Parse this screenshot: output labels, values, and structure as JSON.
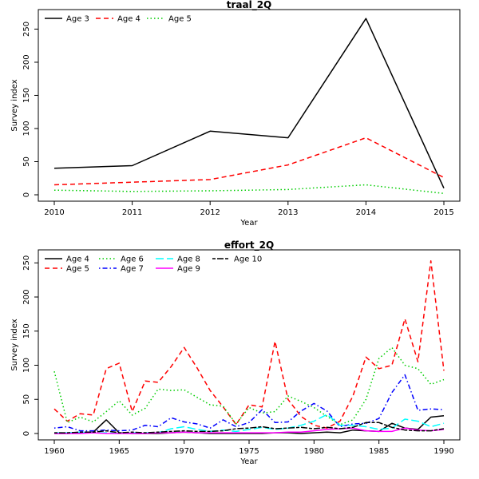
{
  "chart_data": [
    {
      "type": "line",
      "title": "traal_2Q",
      "xlabel": "Year",
      "ylabel": "Survey index",
      "x": [
        2010,
        2011,
        2012,
        2013,
        2014,
        2015
      ],
      "xlim": [
        2010,
        2015
      ],
      "ylim": [
        0,
        265
      ],
      "xticks": [
        2010,
        2011,
        2012,
        2013,
        2014,
        2015
      ],
      "yticks": [
        0,
        50,
        100,
        150,
        200,
        250
      ],
      "legend": "top-left",
      "series": [
        {
          "name": "Age 3",
          "color": "#000000",
          "dash": "solid",
          "values": [
            40,
            44,
            96,
            86,
            266,
            10
          ]
        },
        {
          "name": "Age 4",
          "color": "#ff0000",
          "dash": "dashed",
          "values": [
            15,
            19,
            23,
            45,
            86,
            26
          ]
        },
        {
          "name": "Age 5",
          "color": "#00cd00",
          "dash": "dotted",
          "values": [
            7,
            5,
            6,
            8,
            15,
            2
          ]
        }
      ]
    },
    {
      "type": "line",
      "title": "effort_2Q",
      "xlabel": "Year",
      "ylabel": "Survey index",
      "x": [
        1960,
        1961,
        1962,
        1963,
        1964,
        1965,
        1966,
        1967,
        1968,
        1969,
        1970,
        1971,
        1972,
        1973,
        1974,
        1975,
        1976,
        1977,
        1978,
        1979,
        1980,
        1981,
        1982,
        1983,
        1984,
        1985,
        1986,
        1987,
        1988,
        1989,
        1990
      ],
      "xlim": [
        1960,
        1990
      ],
      "ylim": [
        0,
        255
      ],
      "xticks": [
        1960,
        1965,
        1970,
        1975,
        1980,
        1985,
        1990
      ],
      "yticks": [
        0,
        50,
        100,
        150,
        200,
        250
      ],
      "legend": "top-left",
      "series": [
        {
          "name": "Age 4",
          "color": "#000000",
          "dash": "solid",
          "values": [
            0,
            0,
            1,
            2,
            20,
            1,
            0,
            0,
            0,
            1,
            2,
            1,
            0,
            0,
            0,
            0,
            0,
            1,
            1,
            0,
            1,
            2,
            1,
            5,
            4,
            3,
            15,
            8,
            6,
            24,
            26
          ]
        },
        {
          "name": "Age 5",
          "color": "#ff0000",
          "dash": "dashed",
          "values": [
            36,
            18,
            29,
            27,
            95,
            103,
            32,
            77,
            75,
            98,
            126,
            96,
            63,
            39,
            13,
            42,
            39,
            135,
            50,
            25,
            12,
            8,
            18,
            55,
            112,
            95,
            100,
            168,
            105,
            253,
            92
          ]
        },
        {
          "name": "Age 6",
          "color": "#00cd00",
          "dash": "dotted",
          "values": [
            91,
            16,
            24,
            17,
            32,
            48,
            27,
            37,
            65,
            63,
            64,
            53,
            42,
            40,
            14,
            38,
            30,
            32,
            55,
            47,
            38,
            25,
            13,
            20,
            50,
            110,
            126,
            100,
            95,
            72,
            79
          ]
        },
        {
          "name": "Age 7",
          "color": "#0000ff",
          "dash": "dotdash",
          "values": [
            8,
            10,
            4,
            4,
            5,
            4,
            5,
            12,
            10,
            23,
            17,
            14,
            8,
            20,
            10,
            16,
            35,
            16,
            17,
            33,
            44,
            33,
            10,
            14,
            15,
            22,
            60,
            86,
            34,
            36,
            35
          ]
        },
        {
          "name": "Age 8",
          "color": "#00ffff",
          "dash": "longdash",
          "values": [
            1,
            1,
            2,
            1,
            1,
            0,
            1,
            1,
            1,
            7,
            10,
            6,
            3,
            5,
            3,
            6,
            9,
            6,
            8,
            12,
            18,
            28,
            12,
            12,
            10,
            6,
            8,
            21,
            18,
            10,
            15
          ]
        },
        {
          "name": "Age 9",
          "color": "#ff00ff",
          "dash": "solid",
          "values": [
            0,
            0,
            0,
            1,
            0,
            0,
            0,
            0,
            1,
            1,
            2,
            1,
            1,
            1,
            1,
            1,
            1,
            1,
            2,
            2,
            4,
            6,
            7,
            8,
            4,
            3,
            3,
            8,
            5,
            4,
            6
          ]
        },
        {
          "name": "Age 10",
          "color": "#000000",
          "dash": "twodash",
          "values": [
            1,
            1,
            2,
            2,
            4,
            1,
            2,
            1,
            2,
            3,
            4,
            3,
            3,
            4,
            7,
            8,
            10,
            7,
            8,
            9,
            7,
            9,
            7,
            9,
            16,
            16,
            9,
            5,
            4,
            4,
            7
          ]
        }
      ]
    }
  ]
}
